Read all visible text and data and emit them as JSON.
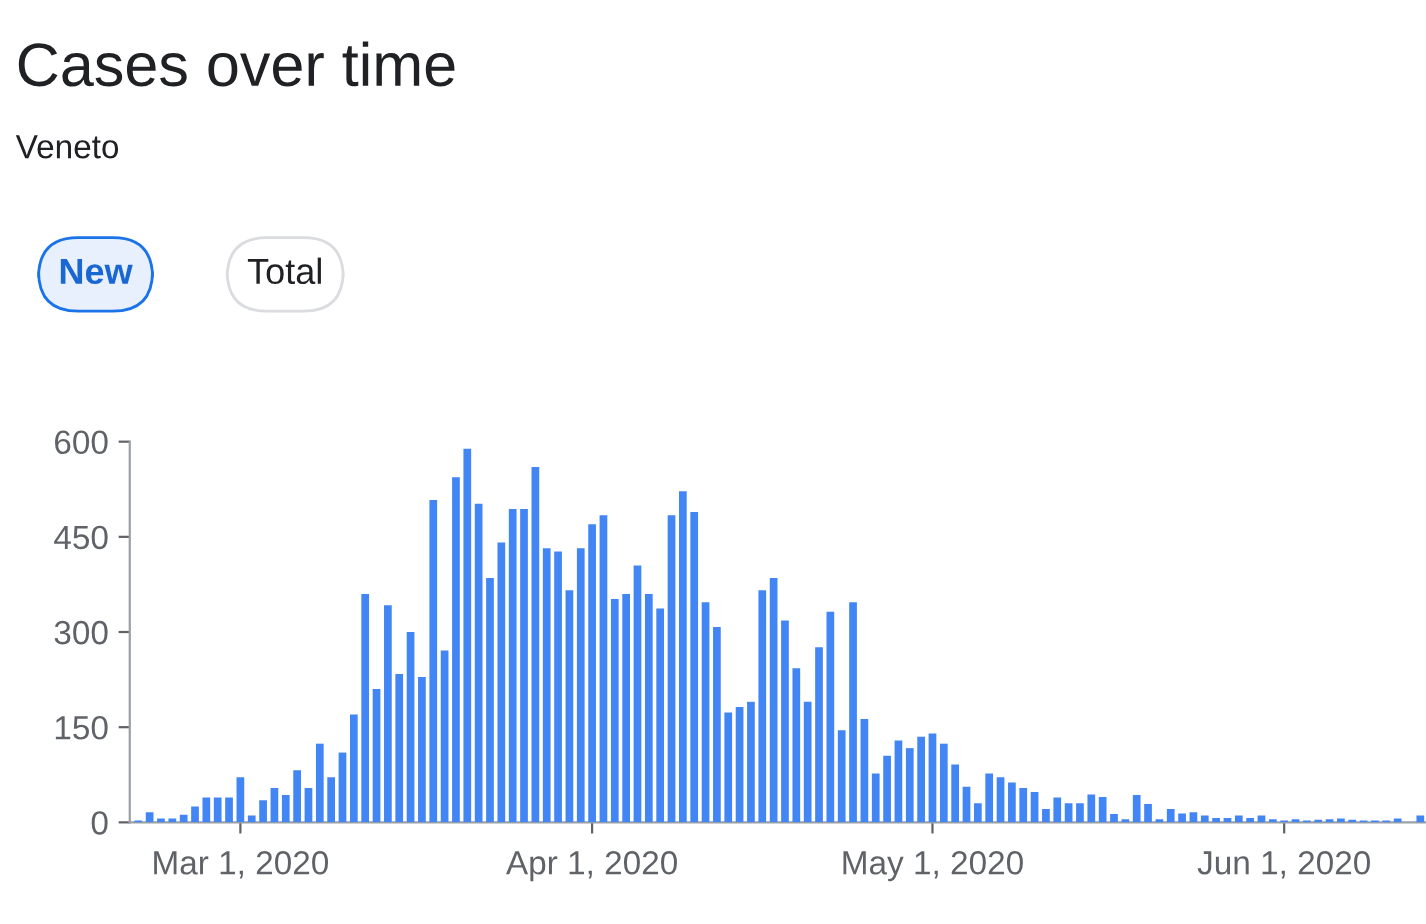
{
  "chart_data": {
    "type": "bar",
    "title": "Cases over time",
    "subtitle": "Veneto",
    "annotations": [
      "New",
      "Total"
    ],
    "x": [
      "2020-02-21",
      "2020-02-22",
      "2020-02-23",
      "2020-02-24",
      "2020-02-25",
      "2020-02-26",
      "2020-02-27",
      "2020-02-28",
      "2020-02-29",
      "2020-03-01",
      "2020-03-02",
      "2020-03-03",
      "2020-03-04",
      "2020-03-05",
      "2020-03-06",
      "2020-03-07",
      "2020-03-08",
      "2020-03-09",
      "2020-03-10",
      "2020-03-11",
      "2020-03-12",
      "2020-03-13",
      "2020-03-14",
      "2020-03-15",
      "2020-03-16",
      "2020-03-17",
      "2020-03-18",
      "2020-03-19",
      "2020-03-20",
      "2020-03-21",
      "2020-03-22",
      "2020-03-23",
      "2020-03-24",
      "2020-03-25",
      "2020-03-26",
      "2020-03-27",
      "2020-03-28",
      "2020-03-29",
      "2020-03-30",
      "2020-03-31",
      "2020-04-01",
      "2020-04-02",
      "2020-04-03",
      "2020-04-04",
      "2020-04-05",
      "2020-04-06",
      "2020-04-07",
      "2020-04-08",
      "2020-04-09",
      "2020-04-10",
      "2020-04-11",
      "2020-04-12",
      "2020-04-13",
      "2020-04-14",
      "2020-04-15",
      "2020-04-16",
      "2020-04-17",
      "2020-04-18",
      "2020-04-19",
      "2020-04-20",
      "2020-04-21",
      "2020-04-22",
      "2020-04-23",
      "2020-04-24",
      "2020-04-25",
      "2020-04-26",
      "2020-04-27",
      "2020-04-28",
      "2020-04-29",
      "2020-04-30",
      "2020-05-01",
      "2020-05-02",
      "2020-05-03",
      "2020-05-04",
      "2020-05-05",
      "2020-05-06",
      "2020-05-07",
      "2020-05-08",
      "2020-05-09",
      "2020-05-10",
      "2020-05-11",
      "2020-05-12",
      "2020-05-13",
      "2020-05-14",
      "2020-05-15",
      "2020-05-16",
      "2020-05-17",
      "2020-05-18",
      "2020-05-19",
      "2020-05-20",
      "2020-05-21",
      "2020-05-22",
      "2020-05-23",
      "2020-05-24",
      "2020-05-25",
      "2020-05-26",
      "2020-05-27",
      "2020-05-28",
      "2020-05-29",
      "2020-05-30",
      "2020-05-31",
      "2020-06-01",
      "2020-06-02",
      "2020-06-03",
      "2020-06-04",
      "2020-06-05",
      "2020-06-06",
      "2020-06-07",
      "2020-06-08",
      "2020-06-09",
      "2020-06-10",
      "2020-06-11",
      "2020-06-12",
      "2020-06-13"
    ],
    "series": [
      {
        "color": "#4285f4",
        "values": [
          3,
          16,
          6,
          6,
          12,
          25,
          39,
          39,
          39,
          71,
          11,
          35,
          54,
          43,
          82,
          54,
          124,
          71,
          110,
          170,
          360,
          210,
          342,
          234,
          300,
          229,
          508,
          271,
          544,
          589,
          502,
          385,
          441,
          494,
          494,
          560,
          432,
          427,
          366,
          432,
          470,
          484,
          352,
          360,
          405,
          360,
          337,
          484,
          522,
          489,
          347,
          308,
          173,
          182,
          190,
          366,
          385,
          318,
          243,
          190,
          276,
          332,
          145,
          347,
          163,
          77,
          105,
          129,
          117,
          135,
          140,
          124,
          91,
          56,
          30,
          77,
          71,
          63,
          54,
          48,
          21,
          39,
          30,
          30,
          44,
          40,
          13,
          5,
          43,
          29,
          5,
          21,
          14,
          16,
          11,
          7,
          7,
          11,
          7,
          11,
          5,
          3,
          5,
          3,
          4,
          5,
          6,
          4,
          3,
          3,
          3,
          6,
          null,
          11
        ]
      }
    ],
    "xlim": [
      "2020-02-20T06:00",
      "2020-06-13T12:00"
    ],
    "ylim": [
      0,
      600
    ],
    "yticks": [
      0,
      150,
      300,
      450,
      600
    ],
    "xticks": [
      {
        "value": "2020-03-01",
        "label": "Mar 1, 2020"
      },
      {
        "value": "2020-04-01",
        "label": "Apr 1, 2020"
      },
      {
        "value": "2020-05-01",
        "label": "May 1, 2020"
      },
      {
        "value": "2020-06-01",
        "label": "Jun 1, 2020"
      }
    ],
    "grid": false,
    "legend": false
  }
}
